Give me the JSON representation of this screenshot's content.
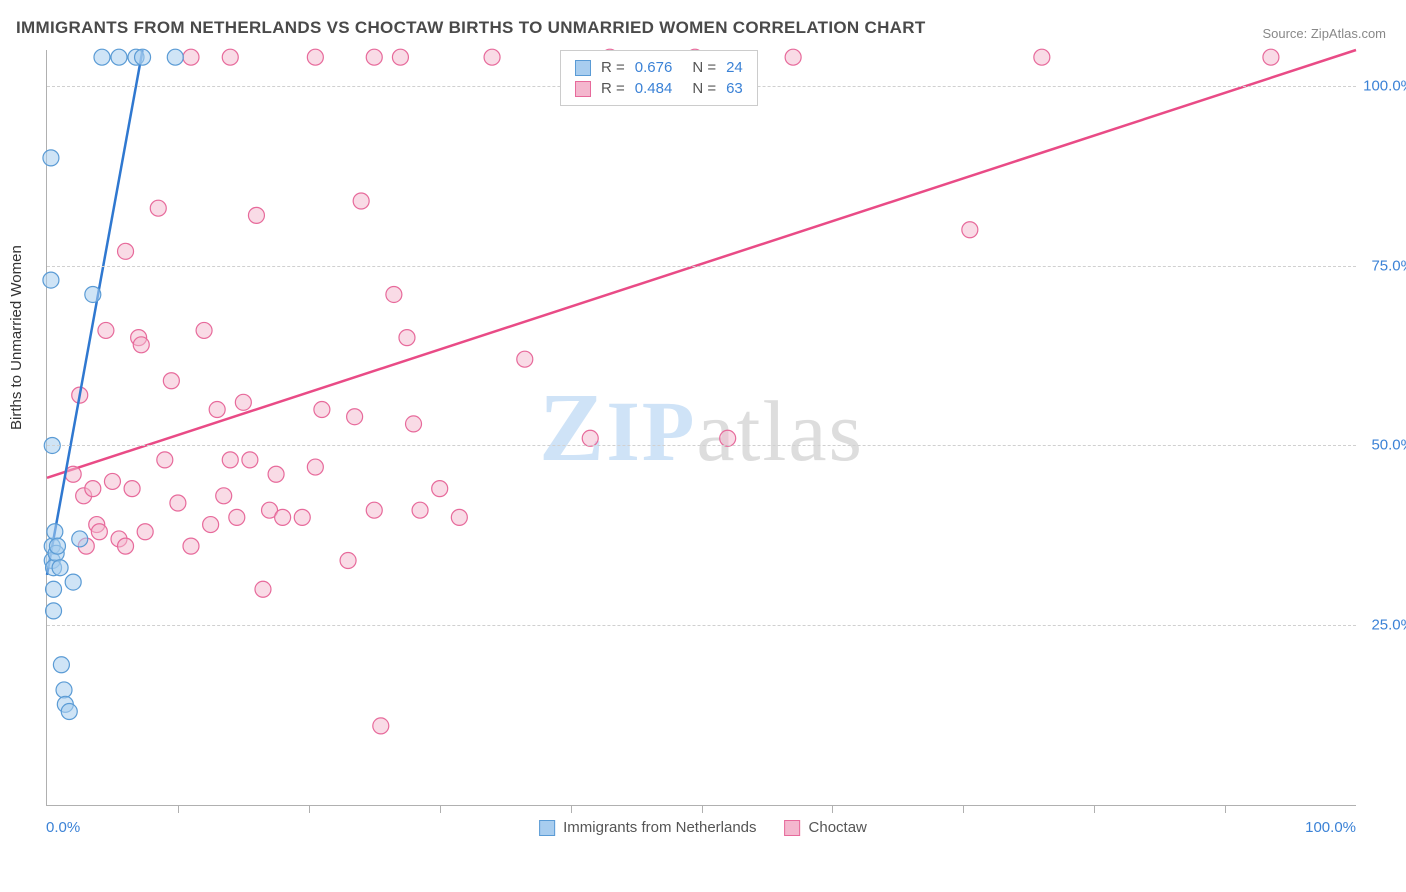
{
  "title": "IMMIGRANTS FROM NETHERLANDS VS CHOCTAW BIRTHS TO UNMARRIED WOMEN CORRELATION CHART",
  "source": "Source: ZipAtlas.com",
  "ylabel": "Births to Unmarried Women",
  "watermark_a": "ZIP",
  "watermark_b": "atlas",
  "chart": {
    "type": "scatter",
    "xlim": [
      0,
      100
    ],
    "ylim": [
      0,
      105
    ],
    "x_axis_label_min": "0.0%",
    "x_axis_label_max": "100.0%",
    "y_ticks": [
      25,
      50,
      75,
      100
    ],
    "y_tick_labels": [
      "25.0%",
      "50.0%",
      "75.0%",
      "100.0%"
    ],
    "x_minor_ticks": [
      10,
      20,
      30,
      40,
      50,
      60,
      70,
      80,
      90
    ],
    "grid_color": "#d8d8d8",
    "background_color": "#ffffff",
    "series": [
      {
        "name": "Immigrants from Netherlands",
        "stroke": "#5a9bd5",
        "fill": "#a8cdef",
        "fill_opacity": 0.55,
        "marker_radius": 8,
        "line_color": "#2f78d0",
        "line_width": 2.5,
        "R": "0.676",
        "N": "24",
        "trend": {
          "x1": 0,
          "y1": 32,
          "x2": 7.3,
          "y2": 105
        },
        "points": [
          [
            0.3,
            90
          ],
          [
            0.3,
            73
          ],
          [
            0.4,
            50
          ],
          [
            0.4,
            36
          ],
          [
            0.4,
            34
          ],
          [
            0.5,
            33
          ],
          [
            0.5,
            30
          ],
          [
            0.5,
            27
          ],
          [
            0.6,
            38
          ],
          [
            0.7,
            35
          ],
          [
            0.8,
            36
          ],
          [
            1.0,
            33
          ],
          [
            1.1,
            19.5
          ],
          [
            1.3,
            16
          ],
          [
            1.4,
            14
          ],
          [
            1.7,
            13
          ],
          [
            2.0,
            31
          ],
          [
            2.5,
            37
          ],
          [
            3.5,
            71
          ],
          [
            4.2,
            104
          ],
          [
            5.5,
            104
          ],
          [
            6.8,
            104
          ],
          [
            7.3,
            104
          ],
          [
            9.8,
            104
          ]
        ]
      },
      {
        "name": "Choctaw",
        "stroke": "#e76a9b",
        "fill": "#f4b7ce",
        "fill_opacity": 0.5,
        "marker_radius": 8,
        "line_color": "#e94b86",
        "line_width": 2.5,
        "R": "0.484",
        "N": "63",
        "trend": {
          "x1": 0,
          "y1": 45.5,
          "x2": 100,
          "y2": 105
        },
        "points": [
          [
            2.0,
            46
          ],
          [
            2.5,
            57
          ],
          [
            2.8,
            43
          ],
          [
            3.0,
            36
          ],
          [
            3.5,
            44
          ],
          [
            3.8,
            39
          ],
          [
            4.0,
            38
          ],
          [
            4.5,
            66
          ],
          [
            5.0,
            45
          ],
          [
            5.5,
            37
          ],
          [
            6.0,
            77
          ],
          [
            6.0,
            36
          ],
          [
            6.5,
            44
          ],
          [
            7.0,
            65
          ],
          [
            7.2,
            64
          ],
          [
            7.5,
            38
          ],
          [
            8.5,
            83
          ],
          [
            9.0,
            48
          ],
          [
            9.5,
            59
          ],
          [
            10.0,
            42
          ],
          [
            11.0,
            36
          ],
          [
            12.0,
            66
          ],
          [
            12.5,
            39
          ],
          [
            13.0,
            55
          ],
          [
            13.5,
            43
          ],
          [
            14.0,
            48
          ],
          [
            14.5,
            40
          ],
          [
            15.0,
            56
          ],
          [
            15.5,
            48
          ],
          [
            16.0,
            82
          ],
          [
            16.5,
            30
          ],
          [
            17.0,
            41
          ],
          [
            17.5,
            46
          ],
          [
            18.0,
            40
          ],
          [
            14.0,
            104
          ],
          [
            19.5,
            40
          ],
          [
            20.5,
            104
          ],
          [
            20.5,
            47
          ],
          [
            21.0,
            55
          ],
          [
            23.0,
            34
          ],
          [
            23.5,
            54
          ],
          [
            24.0,
            84
          ],
          [
            25.0,
            41
          ],
          [
            25.5,
            11
          ],
          [
            26.5,
            71
          ],
          [
            27.0,
            104
          ],
          [
            27.5,
            65
          ],
          [
            28.0,
            53
          ],
          [
            28.5,
            41
          ],
          [
            30.0,
            44
          ],
          [
            34.0,
            104
          ],
          [
            25.0,
            104
          ],
          [
            31.5,
            40
          ],
          [
            36.5,
            62
          ],
          [
            41.5,
            51
          ],
          [
            43.0,
            104
          ],
          [
            49.5,
            104
          ],
          [
            52.0,
            51
          ],
          [
            57.0,
            104
          ],
          [
            70.5,
            80
          ],
          [
            76.0,
            104
          ],
          [
            93.5,
            104
          ],
          [
            11.0,
            104
          ]
        ]
      }
    ]
  },
  "legend_bottom": [
    {
      "label": "Immigrants from Netherlands",
      "stroke": "#5a9bd5",
      "fill": "#a8cdef"
    },
    {
      "label": "Choctaw",
      "stroke": "#e76a9b",
      "fill": "#f4b7ce"
    }
  ]
}
